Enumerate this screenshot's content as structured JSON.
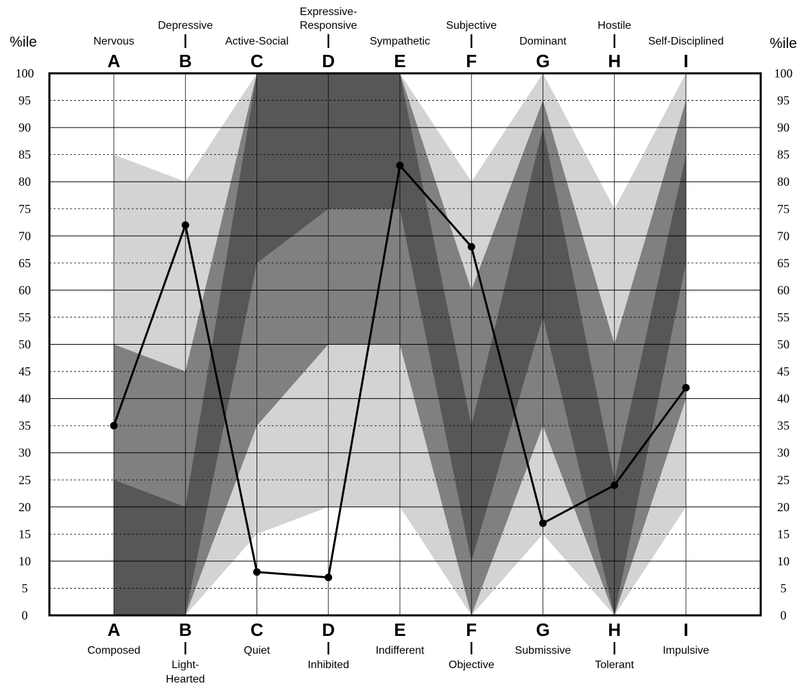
{
  "chart_data": {
    "type": "line",
    "unit_left": "%ile",
    "unit_right": "%ile",
    "ylim": [
      0,
      100
    ],
    "yticks": [
      "0",
      "5",
      "10",
      "15",
      "20",
      "25",
      "30",
      "35",
      "40",
      "45",
      "50",
      "55",
      "60",
      "65",
      "70",
      "75",
      "80",
      "85",
      "90",
      "95",
      "100"
    ],
    "categories": [
      "A",
      "B",
      "C",
      "D",
      "E",
      "F",
      "G",
      "H",
      "I"
    ],
    "top_labels": [
      "Nervous",
      "Depressive",
      "Active-Social",
      "Expressive-Responsive",
      "Sympathetic",
      "Subjective",
      "Dominant",
      "Hostile",
      "Self-Disciplined"
    ],
    "bottom_labels": [
      "Composed",
      "Light-Hearted",
      "Quiet",
      "Inhibited",
      "Indifferent",
      "Objective",
      "Submissive",
      "Tolerant",
      "Impulsive"
    ],
    "series": [
      {
        "values": [
          35,
          72,
          8,
          7,
          83,
          68,
          17,
          24,
          42
        ]
      }
    ],
    "bands": {
      "outer_lo": [
        0,
        0,
        15,
        20,
        20,
        0,
        15,
        0,
        20
      ],
      "outer_hi": [
        85,
        80,
        100,
        100,
        100,
        80,
        100,
        75,
        100
      ],
      "middle_lo": [
        0,
        0,
        35,
        50,
        50,
        0,
        35,
        0,
        40
      ],
      "middle_hi": [
        50,
        45,
        100,
        100,
        100,
        60,
        95,
        50,
        95
      ],
      "inner_lo": [
        0,
        0,
        65,
        75,
        75,
        10,
        55,
        0,
        65
      ],
      "inner_hi": [
        25,
        20,
        100,
        100,
        100,
        35,
        90,
        25,
        85
      ]
    },
    "colors": {
      "outer": "#d3d3d3",
      "middle": "#808080",
      "inner": "#575757",
      "line": "#000000"
    },
    "grid": true,
    "grid_solid_every": 10,
    "grid_dashed_every": 5
  }
}
